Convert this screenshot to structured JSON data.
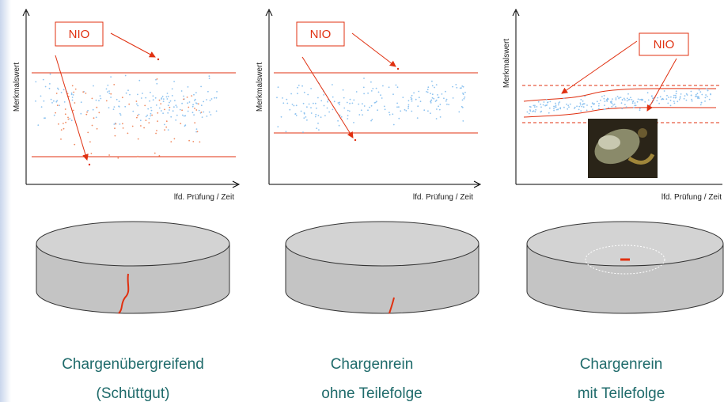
{
  "panels": [
    {
      "y_label": "Merkmalswert",
      "x_label": "lfd. Prüfung / Zeit",
      "flag": "NIO",
      "caption": [
        "Chargenübergreifend",
        "(Schüttgut)"
      ]
    },
    {
      "y_label": "Merkmalswert",
      "x_label": "lfd. Prüfung / Zeit",
      "flag": "NIO",
      "caption": [
        "Chargenrein",
        "ohne Teilefolge"
      ]
    },
    {
      "y_label": "Merkmalswert",
      "x_label": "lfd. Prüfung / Zeit",
      "flag": "NIO",
      "caption": [
        "Chargenrein",
        "mit Teilefolge"
      ]
    }
  ]
}
